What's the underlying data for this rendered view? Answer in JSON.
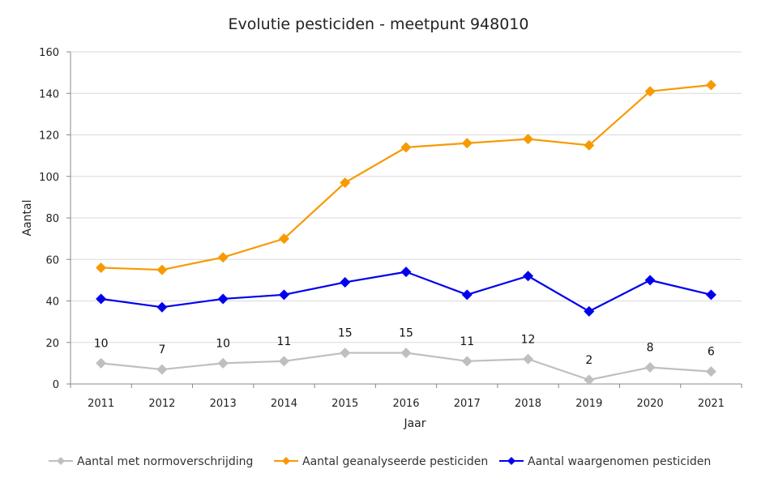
{
  "chart_data": {
    "type": "line",
    "title": "Evolutie pesticiden - meetpunt 948010",
    "xlabel": "Jaar",
    "ylabel": "Aantal",
    "categories": [
      "2011",
      "2012",
      "2013",
      "2014",
      "2015",
      "2016",
      "2017",
      "2018",
      "2019",
      "2020",
      "2021"
    ],
    "ylim": [
      0,
      160
    ],
    "yticks": [
      0,
      20,
      40,
      60,
      80,
      100,
      120,
      140,
      160
    ],
    "grid": true,
    "legend_position": "bottom",
    "series": [
      {
        "name": "Aantal met normoverschrijding",
        "color": "#bfbfbf",
        "marker": "diamond",
        "values": [
          10,
          7,
          10,
          11,
          15,
          15,
          11,
          12,
          2,
          8,
          6
        ],
        "data_labels": true
      },
      {
        "name": "Aantal geanalyseerde pesticiden",
        "color": "#f79a00",
        "marker": "diamond",
        "values": [
          56,
          55,
          61,
          70,
          97,
          114,
          116,
          118,
          115,
          141,
          144
        ],
        "data_labels": false
      },
      {
        "name": "Aantal waargenomen pesticiden",
        "color": "#0000ee",
        "marker": "diamond",
        "values": [
          41,
          37,
          41,
          43,
          49,
          54,
          43,
          52,
          35,
          50,
          43
        ],
        "data_labels": false
      }
    ]
  }
}
